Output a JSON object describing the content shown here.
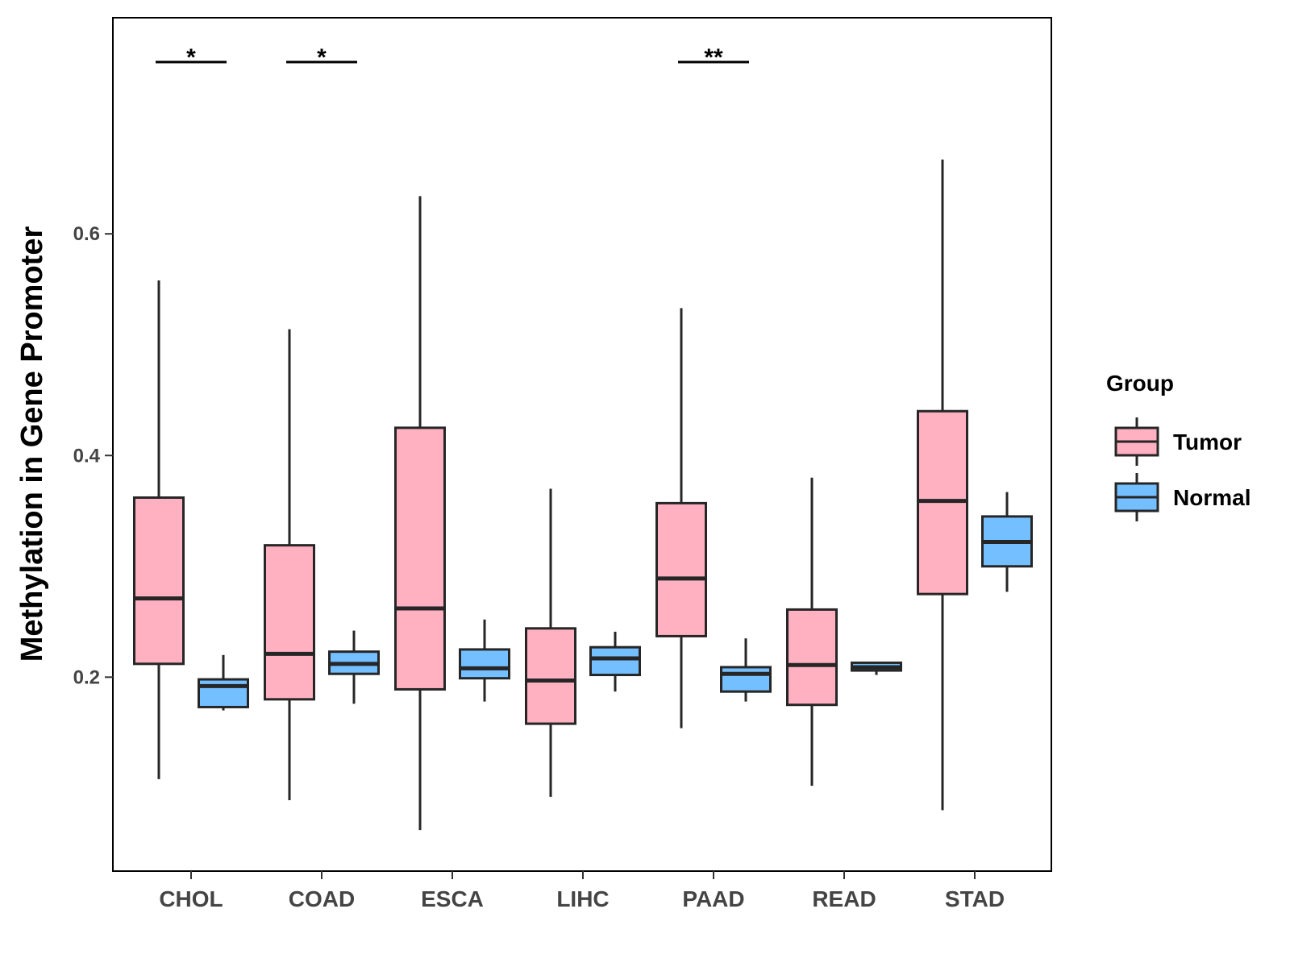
{
  "chart_data": {
    "type": "boxplot",
    "title": "",
    "xlabel": "",
    "ylabel": "Methylation in Gene Promoter",
    "ylim": [
      0.025,
      0.795
    ],
    "yticks": [
      0.2,
      0.4,
      0.6
    ],
    "ytick_labels": [
      "0.2",
      "0.4",
      "0.6"
    ],
    "grid": false,
    "legend_position": "right",
    "legend_title": "Group",
    "categories": [
      "CHOL",
      "COAD",
      "ESCA",
      "LIHC",
      "PAAD",
      "READ",
      "STAD"
    ],
    "series": [
      {
        "name": "Tumor",
        "color": "#FFB0C1",
        "boxes": [
          {
            "min": 0.108,
            "q1": 0.212,
            "median": 0.271,
            "q3": 0.362,
            "max": 0.558
          },
          {
            "min": 0.089,
            "q1": 0.18,
            "median": 0.221,
            "q3": 0.319,
            "max": 0.514
          },
          {
            "min": 0.062,
            "q1": 0.189,
            "median": 0.262,
            "q3": 0.425,
            "max": 0.634
          },
          {
            "min": 0.092,
            "q1": 0.158,
            "median": 0.197,
            "q3": 0.244,
            "max": 0.37
          },
          {
            "min": 0.154,
            "q1": 0.237,
            "median": 0.289,
            "q3": 0.357,
            "max": 0.533
          },
          {
            "min": 0.102,
            "q1": 0.175,
            "median": 0.211,
            "q3": 0.261,
            "max": 0.38
          },
          {
            "min": 0.08,
            "q1": 0.275,
            "median": 0.359,
            "q3": 0.44,
            "max": 0.667
          }
        ]
      },
      {
        "name": "Normal",
        "color": "#74BFFF",
        "boxes": [
          {
            "min": 0.17,
            "q1": 0.173,
            "median": 0.192,
            "q3": 0.198,
            "max": 0.22
          },
          {
            "min": 0.176,
            "q1": 0.203,
            "median": 0.212,
            "q3": 0.223,
            "max": 0.242
          },
          {
            "min": 0.178,
            "q1": 0.199,
            "median": 0.208,
            "q3": 0.225,
            "max": 0.252
          },
          {
            "min": 0.187,
            "q1": 0.202,
            "median": 0.217,
            "q3": 0.227,
            "max": 0.241
          },
          {
            "min": 0.178,
            "q1": 0.187,
            "median": 0.203,
            "q3": 0.209,
            "max": 0.235
          },
          {
            "min": 0.202,
            "q1": 0.206,
            "median": 0.209,
            "q3": 0.213,
            "max": 0.214
          },
          {
            "min": 0.277,
            "q1": 0.3,
            "median": 0.322,
            "q3": 0.345,
            "max": 0.367
          }
        ]
      }
    ],
    "annotations": [
      {
        "category": "CHOL",
        "text": "*",
        "y": 0.755
      },
      {
        "category": "COAD",
        "text": "*",
        "y": 0.755
      },
      {
        "category": "PAAD",
        "text": "**",
        "y": 0.755
      }
    ]
  }
}
